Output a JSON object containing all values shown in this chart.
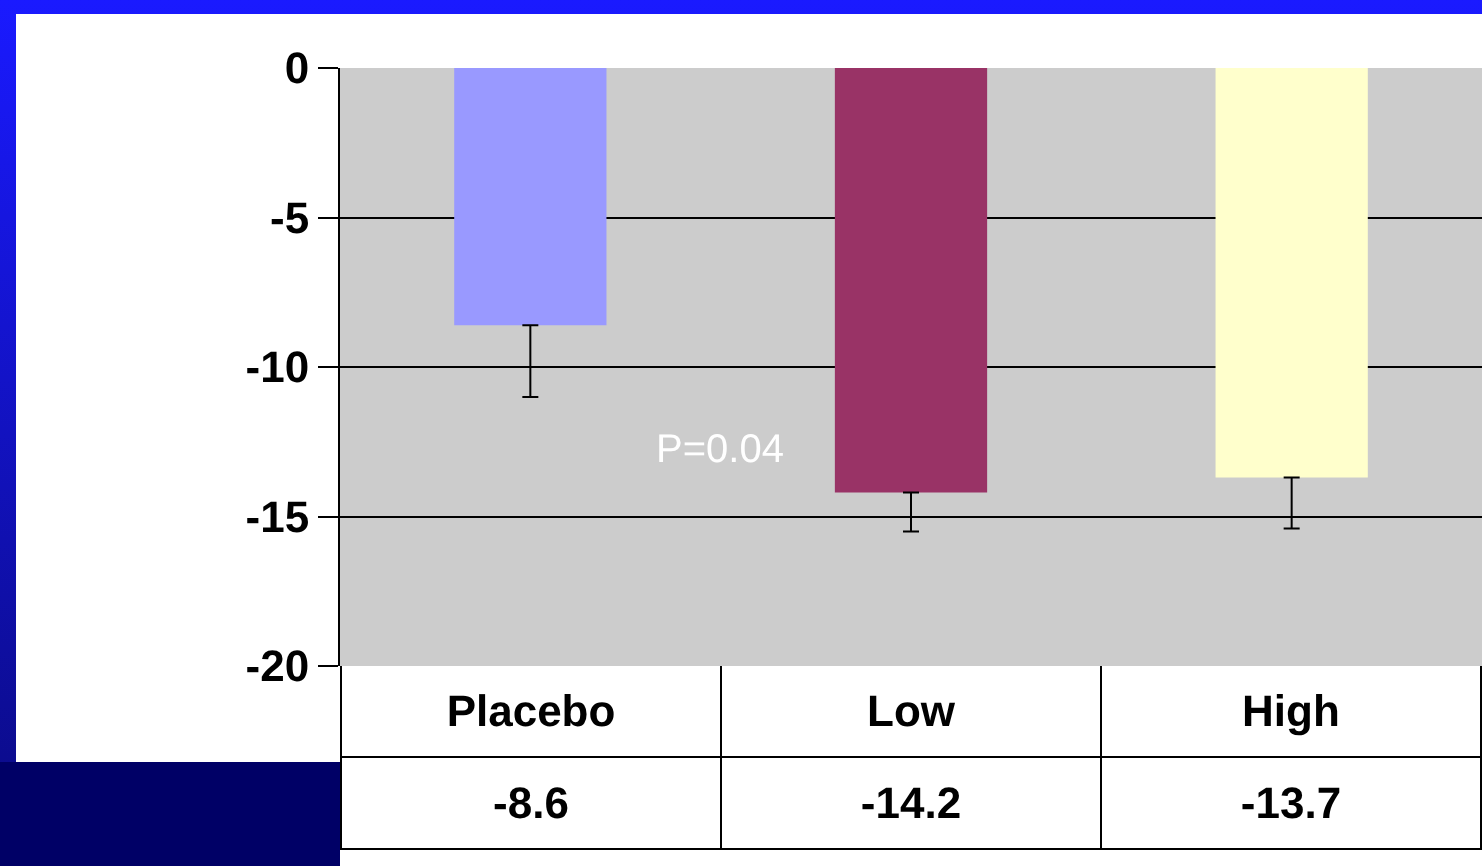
{
  "chart_data": {
    "type": "bar",
    "categories": [
      "Placebo",
      "Low",
      "High"
    ],
    "values": [
      -8.6,
      -14.2,
      -13.7
    ],
    "colors": [
      "#9999ff",
      "#993366",
      "#ffffcc"
    ],
    "errors": [
      [
        -11.0,
        -8.6
      ],
      [
        -15.5,
        -14.2
      ],
      [
        -15.4,
        -13.7
      ]
    ],
    "ylim": [
      -20,
      0
    ],
    "yticks": [
      0,
      -5,
      -10,
      -15,
      -20
    ],
    "grid": "y",
    "data_labels": true,
    "annotations": [
      "P=0.04"
    ]
  }
}
